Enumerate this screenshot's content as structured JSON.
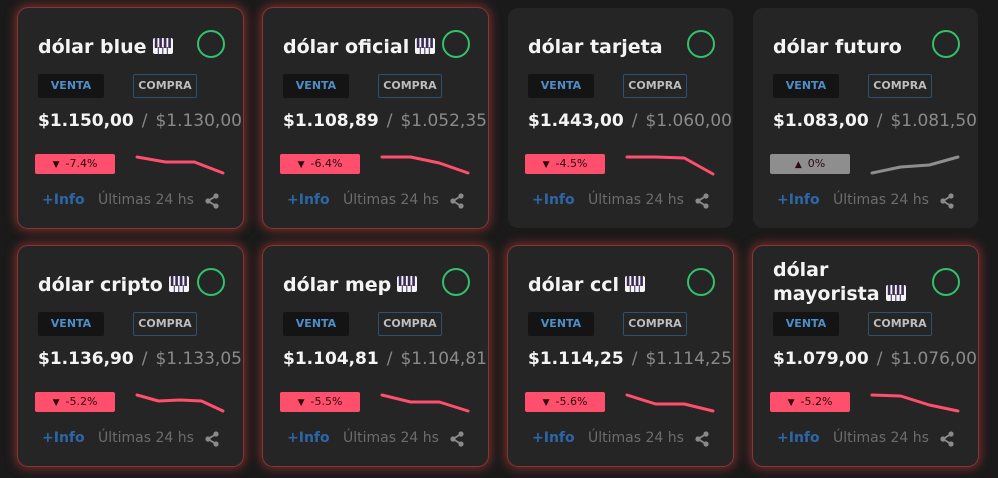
{
  "labels": {
    "venta": "VENTA",
    "compra": "COMPRA",
    "info": "+Info",
    "period": "Últimas 24 hs",
    "separator": "/"
  },
  "colors": {
    "background": "#1a1a1a",
    "card": "#252525",
    "down": "#ff4f6d",
    "flat": "#8e8e8e",
    "circle": "#31c26d",
    "link": "#2c66a8"
  },
  "cards": [
    {
      "title": "dólar blue",
      "piano_icon": true,
      "highlighted": true,
      "venta": "$1.150,00",
      "compra": "$1.130,00",
      "change": "-7.4%",
      "trend": "down",
      "sparkline": [
        0.1,
        0.35,
        0.35,
        0.9
      ]
    },
    {
      "title": "dólar oficial",
      "piano_icon": true,
      "highlighted": true,
      "venta": "$1.108,89",
      "compra": "$1.052,35",
      "change": "-6.4%",
      "trend": "down",
      "sparkline": [
        0.1,
        0.1,
        0.4,
        0.9
      ]
    },
    {
      "title": "dólar tarjeta",
      "piano_icon": false,
      "highlighted": false,
      "venta": "$1.443,00",
      "compra": "$1.060,00",
      "change": "-4.5%",
      "trend": "down",
      "sparkline": [
        0.1,
        0.1,
        0.15,
        0.95
      ]
    },
    {
      "title": "dólar futuro",
      "piano_icon": false,
      "highlighted": false,
      "venta": "$1.083,00",
      "compra": "$1.081,50",
      "change": "0%",
      "trend": "flat",
      "sparkline": [
        0.9,
        0.6,
        0.5,
        0.1
      ]
    },
    {
      "title": "dólar cripto",
      "piano_icon": true,
      "highlighted": true,
      "venta": "$1.136,90",
      "compra": "$1.133,05",
      "change": "-5.2%",
      "trend": "down",
      "sparkline": [
        0.1,
        0.4,
        0.35,
        0.4,
        0.9
      ]
    },
    {
      "title": "dólar mep",
      "piano_icon": true,
      "highlighted": true,
      "venta": "$1.104,81",
      "compra": "$1.104,81",
      "change": "-5.5%",
      "trend": "down",
      "sparkline": [
        0.1,
        0.45,
        0.45,
        0.9
      ]
    },
    {
      "title": "dólar ccl",
      "piano_icon": true,
      "highlighted": true,
      "venta": "$1.114,25",
      "compra": "$1.114,25",
      "change": "-5.6%",
      "trend": "down",
      "sparkline": [
        0.1,
        0.55,
        0.55,
        0.9
      ]
    },
    {
      "title": "dólar mayorista",
      "piano_icon": true,
      "highlighted": true,
      "venta": "$1.079,00",
      "compra": "$1.076,00",
      "change": "-5.2%",
      "trend": "down",
      "sparkline": [
        0.1,
        0.15,
        0.6,
        0.9
      ]
    }
  ]
}
